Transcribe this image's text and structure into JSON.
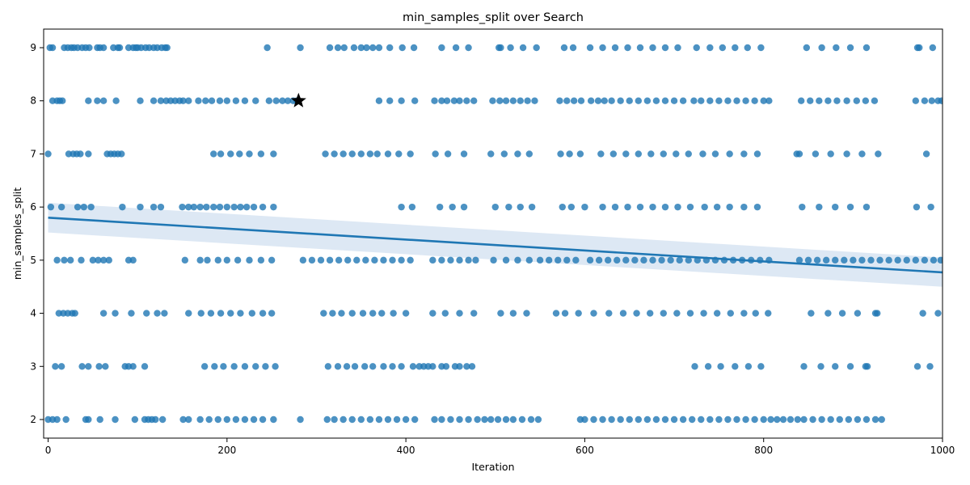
{
  "chart_data": {
    "type": "scatter",
    "title": "min_samples_split over Search",
    "xlabel": "Iteration",
    "ylabel": "min_samples_split",
    "xlim": [
      -5,
      1000
    ],
    "ylim": [
      1.65,
      9.35
    ],
    "xticks": [
      0,
      200,
      400,
      600,
      800,
      1000
    ],
    "yticks": [
      2,
      3,
      4,
      5,
      6,
      7,
      8,
      9
    ],
    "grid": false,
    "legend": "none",
    "point_color": "#1f77b4",
    "series": [
      {
        "marker": "circle",
        "points_by_level": [
          {
            "y": 9,
            "x": [
              2,
              5,
              18,
              22,
              26,
              29,
              33,
              38,
              42,
              46,
              55,
              58,
              62,
              73,
              78,
              80,
              90,
              95,
              98,
              100,
              104,
              109,
              113,
              118,
              122,
              127,
              131,
              133,
              245,
              282,
              315,
              324,
              331,
              342,
              350,
              356,
              363,
              370,
              382,
              396,
              409,
              440,
              456,
              470,
              504,
              506,
              517,
              531,
              546,
              577,
              587,
              606,
              620,
              634,
              648,
              662,
              676,
              690,
              704,
              725,
              740,
              754,
              768,
              782,
              797,
              848,
              865,
              881,
              897,
              915,
              972,
              974,
              989
            ]
          },
          {
            "y": 8,
            "x": [
              5,
              10,
              13,
              16,
              45,
              55,
              62,
              76,
              103,
              118,
              126,
              132,
              137,
              142,
              147,
              151,
              157,
              168,
              176,
              183,
              192,
              200,
              210,
              220,
              232,
              247,
              255,
              262,
              268,
              274,
              278,
              370,
              382,
              395,
              410,
              432,
              440,
              446,
              454,
              460,
              468,
              476,
              497,
              505,
              512,
              520,
              528,
              536,
              544,
              572,
              580,
              588,
              596,
              607,
              615,
              622,
              630,
              640,
              650,
              660,
              670,
              680,
              690,
              700,
              710,
              722,
              730,
              740,
              750,
              760,
              770,
              780,
              790,
              800,
              806,
              842,
              852,
              862,
              872,
              882,
              893,
              904,
              914,
              924,
              970,
              980,
              988,
              995,
              999
            ]
          },
          {
            "y": 7,
            "x": [
              0,
              23,
              28,
              32,
              36,
              45,
              66,
              70,
              74,
              78,
              82,
              185,
              193,
              204,
              214,
              225,
              238,
              252,
              310,
              320,
              330,
              340,
              350,
              360,
              368,
              380,
              392,
              405,
              433,
              447,
              465,
              495,
              510,
              525,
              538,
              573,
              583,
              595,
              618,
              632,
              646,
              660,
              674,
              688,
              702,
              716,
              732,
              746,
              762,
              778,
              793,
              837,
              840,
              858,
              875,
              893,
              910,
              928,
              982
            ]
          },
          {
            "y": 6,
            "x": [
              3,
              15,
              33,
              40,
              48,
              83,
              103,
              118,
              126,
              150,
              157,
              163,
              170,
              177,
              185,
              192,
              200,
              208,
              215,
              222,
              230,
              240,
              252,
              395,
              407,
              438,
              452,
              465,
              500,
              515,
              528,
              541,
              575,
              585,
              600,
              620,
              634,
              648,
              662,
              676,
              690,
              704,
              718,
              734,
              748,
              762,
              778,
              793,
              843,
              862,
              880,
              897,
              915,
              971,
              987
            ]
          },
          {
            "y": 5,
            "x": [
              10,
              18,
              25,
              37,
              50,
              56,
              62,
              68,
              90,
              95,
              153,
              170,
              178,
              190,
              200,
              212,
              225,
              238,
              250,
              285,
              295,
              305,
              315,
              325,
              335,
              345,
              355,
              365,
              375,
              385,
              395,
              405,
              430,
              440,
              450,
              460,
              470,
              478,
              498,
              512,
              525,
              538,
              550,
              560,
              570,
              580,
              590,
              606,
              616,
              626,
              636,
              646,
              656,
              666,
              676,
              686,
              696,
              706,
              716,
              726,
              736,
              746,
              756,
              766,
              776,
              786,
              796,
              806,
              840,
              850,
              860,
              870,
              880,
              890,
              900,
              910,
              920,
              930,
              940,
              950,
              960,
              970,
              980,
              990,
              998
            ]
          },
          {
            "y": 4,
            "x": [
              12,
              17,
              22,
              27,
              30,
              62,
              75,
              93,
              110,
              122,
              130,
              157,
              171,
              182,
              193,
              204,
              215,
              228,
              240,
              250,
              308,
              318,
              328,
              340,
              352,
              363,
              373,
              386,
              400,
              430,
              444,
              460,
              476,
              506,
              520,
              535,
              568,
              578,
              593,
              610,
              627,
              643,
              658,
              673,
              688,
              703,
              718,
              733,
              748,
              763,
              778,
              791,
              805,
              853,
              872,
              888,
              905,
              925,
              927,
              978,
              995
            ]
          },
          {
            "y": 3,
            "x": [
              8,
              15,
              38,
              45,
              57,
              64,
              86,
              90,
              95,
              108,
              175,
              186,
              196,
              208,
              220,
              232,
              243,
              254,
              313,
              324,
              334,
              343,
              354,
              363,
              375,
              385,
              395,
              408,
              415,
              420,
              425,
              430,
              440,
              445,
              455,
              460,
              468,
              474,
              723,
              738,
              752,
              768,
              783,
              797,
              845,
              864,
              880,
              897,
              914,
              916,
              972,
              986
            ]
          },
          {
            "y": 2,
            "x": [
              0,
              5,
              10,
              20,
              42,
              45,
              58,
              75,
              97,
              108,
              112,
              116,
              120,
              128,
              151,
              157,
              170,
              180,
              190,
              200,
              210,
              220,
              230,
              240,
              252,
              282,
              312,
              320,
              330,
              340,
              350,
              360,
              370,
              380,
              390,
              400,
              410,
              432,
              440,
              450,
              460,
              470,
              480,
              488,
              495,
              503,
              512,
              520,
              530,
              540,
              548,
              595,
              600,
              610,
              620,
              630,
              640,
              650,
              660,
              670,
              680,
              690,
              700,
              710,
              720,
              730,
              740,
              750,
              760,
              770,
              780,
              790,
              800,
              808,
              815,
              822,
              830,
              838,
              845,
              855,
              865,
              875,
              885,
              895,
              905,
              915,
              925,
              932
            ]
          }
        ]
      }
    ],
    "highlight": {
      "marker": "star",
      "x": 280,
      "y": 8,
      "color": "#000000"
    },
    "trend_line": {
      "x": [
        0,
        1000
      ],
      "y": [
        5.8,
        4.77
      ],
      "color": "#1f77b4"
    },
    "confidence_band": {
      "x": [
        0,
        1000
      ],
      "upper": [
        6.08,
        5.05
      ],
      "lower": [
        5.52,
        4.5
      ],
      "color": "#c6d9ec"
    }
  }
}
